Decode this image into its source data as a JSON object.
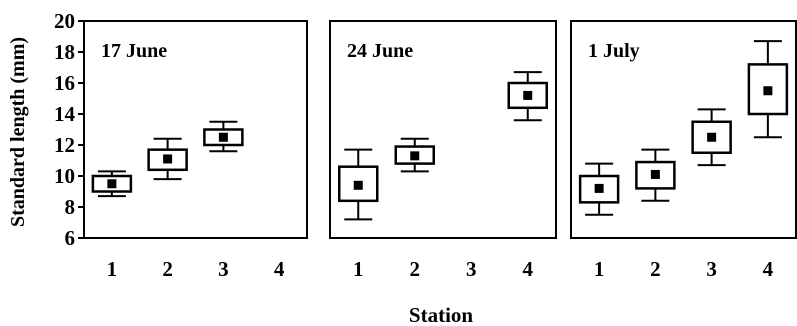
{
  "chart_data": [
    {
      "type": "box",
      "title": "17 June",
      "xlabel": "Station",
      "ylabel": "Standard length (mm)",
      "categories": [
        "1",
        "2",
        "3",
        "4"
      ],
      "ylim": [
        6,
        20
      ],
      "yticks": [
        6,
        8,
        10,
        12,
        14,
        16,
        18,
        20
      ],
      "boxes": [
        {
          "station": "1",
          "whisker_low": 8.7,
          "q1": 9.0,
          "median": 9.5,
          "q3": 10.0,
          "whisker_high": 10.3
        },
        {
          "station": "2",
          "whisker_low": 9.8,
          "q1": 10.4,
          "median": 11.1,
          "q3": 11.7,
          "whisker_high": 12.4
        },
        {
          "station": "3",
          "whisker_low": 11.6,
          "q1": 12.0,
          "median": 12.5,
          "q3": 13.0,
          "whisker_high": 13.5
        }
      ]
    },
    {
      "type": "box",
      "title": "24 June",
      "xlabel": "Station",
      "ylabel": "Standard length (mm)",
      "categories": [
        "1",
        "2",
        "3",
        "4"
      ],
      "ylim": [
        6,
        20
      ],
      "yticks": [
        6,
        8,
        10,
        12,
        14,
        16,
        18,
        20
      ],
      "boxes": [
        {
          "station": "1",
          "whisker_low": 7.2,
          "q1": 8.4,
          "median": 9.4,
          "q3": 10.6,
          "whisker_high": 11.7
        },
        {
          "station": "2",
          "whisker_low": 10.3,
          "q1": 10.8,
          "median": 11.3,
          "q3": 11.9,
          "whisker_high": 12.4
        },
        {
          "station": "4",
          "whisker_low": 13.6,
          "q1": 14.4,
          "median": 15.2,
          "q3": 16.0,
          "whisker_high": 16.7
        }
      ]
    },
    {
      "type": "box",
      "title": "1 July",
      "xlabel": "Station",
      "ylabel": "Standard length (mm)",
      "categories": [
        "1",
        "2",
        "3",
        "4"
      ],
      "ylim": [
        6,
        20
      ],
      "yticks": [
        6,
        8,
        10,
        12,
        14,
        16,
        18,
        20
      ],
      "boxes": [
        {
          "station": "1",
          "whisker_low": 7.5,
          "q1": 8.3,
          "median": 9.2,
          "q3": 10.0,
          "whisker_high": 10.8
        },
        {
          "station": "2",
          "whisker_low": 8.4,
          "q1": 9.2,
          "median": 10.1,
          "q3": 10.9,
          "whisker_high": 11.7
        },
        {
          "station": "3",
          "whisker_low": 10.7,
          "q1": 11.5,
          "median": 12.5,
          "q3": 13.5,
          "whisker_high": 14.3
        },
        {
          "station": "4",
          "whisker_low": 12.5,
          "q1": 14.0,
          "median": 15.5,
          "q3": 17.2,
          "whisker_high": 18.7
        }
      ]
    }
  ],
  "figure": {
    "ylabel": "Standard length (mm)",
    "xlabel": "Station"
  }
}
